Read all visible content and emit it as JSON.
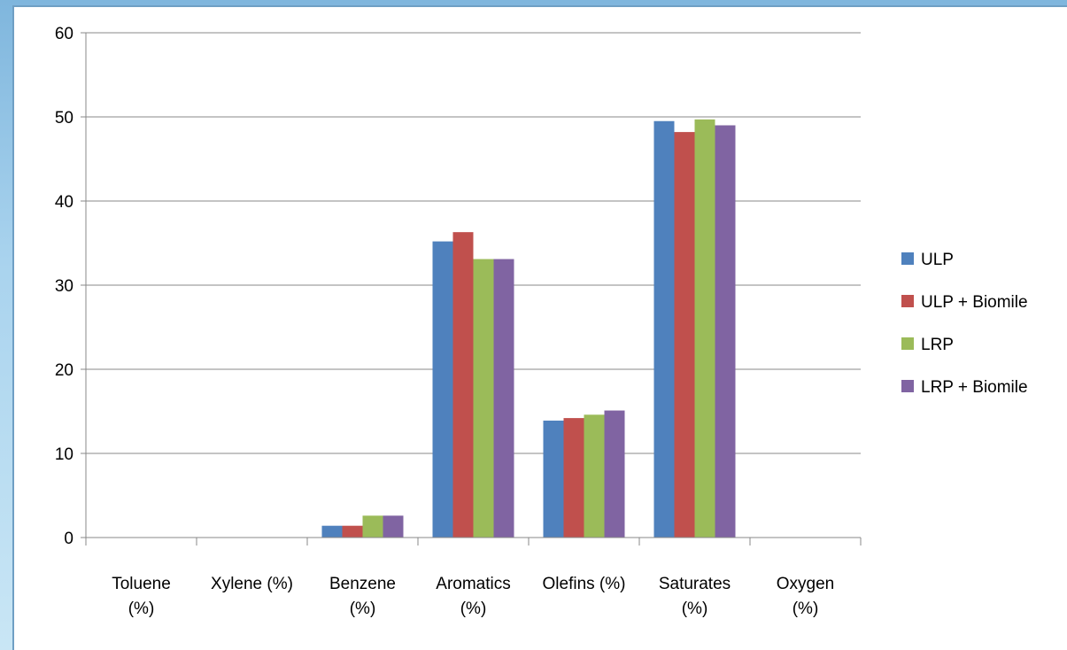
{
  "chart_data": {
    "type": "bar",
    "categories": [
      [
        "Toluene",
        "(%)"
      ],
      [
        "Xylene (%)"
      ],
      [
        "Benzene",
        "(%)"
      ],
      [
        "Aromatics",
        "(%)"
      ],
      [
        "Olefins (%)"
      ],
      [
        "Saturates",
        "(%)"
      ],
      [
        "Oxygen",
        "(%)"
      ]
    ],
    "series": [
      {
        "name": "ULP",
        "color": "#4f81bd",
        "values": [
          0,
          0,
          1.4,
          35.2,
          13.9,
          49.5,
          0
        ]
      },
      {
        "name": "ULP + Biomile",
        "color": "#c0504d",
        "values": [
          0,
          0,
          1.4,
          36.3,
          14.2,
          48.2,
          0
        ]
      },
      {
        "name": "LRP",
        "color": "#9bbb59",
        "values": [
          0,
          0,
          2.6,
          33.1,
          14.6,
          49.7,
          0
        ]
      },
      {
        "name": "LRP + Biomile",
        "color": "#8064a2",
        "values": [
          0,
          0,
          2.6,
          33.1,
          15.1,
          49.0,
          0
        ]
      }
    ],
    "ylim": [
      0,
      60
    ],
    "yticks": [
      0,
      10,
      20,
      30,
      40,
      50,
      60
    ],
    "grid": true,
    "legend": "right",
    "title": "",
    "xlabel": "",
    "ylabel": ""
  }
}
